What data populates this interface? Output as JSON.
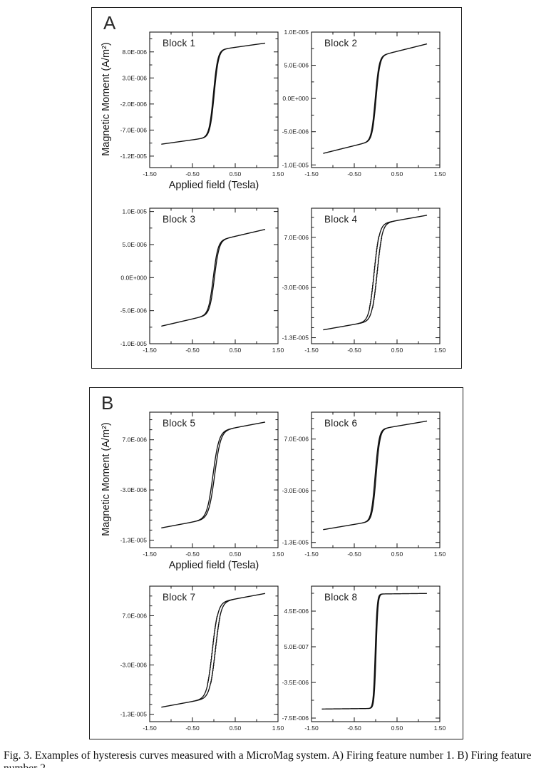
{
  "figure": {
    "caption": "Fig. 3. Examples of hysteresis curves measured with a MicroMag system. A) Firing feature number 1. B) Firing feature number 2.",
    "panels": [
      {
        "label": "A"
      },
      {
        "label": "B"
      }
    ]
  },
  "chart_data": [
    {
      "type": "line",
      "title": "Block 1",
      "panel": "A",
      "ylabel": "Magnetic Moment (A/m²)",
      "xlabel": "Applied field (Tesla)",
      "xlim": [
        -1.5,
        1.5
      ],
      "ylim": [
        -1.42e-05,
        1.18e-05
      ],
      "x_major": [
        -1.5,
        -0.5,
        0.5,
        1.5
      ],
      "x_labels": [
        "-1.50",
        "-0.50",
        "0.50",
        "1.50"
      ],
      "x_minor": [
        -1.0,
        0.0,
        1.0
      ],
      "yticks": [
        {
          "value": 8e-06,
          "label": "8.0E-006"
        },
        {
          "value": 3e-06,
          "label": "3.0E-006"
        },
        {
          "value": -2e-06,
          "label": "-2.0E-006"
        },
        {
          "value": -7e-06,
          "label": "-7.0E-006"
        },
        {
          "value": -1.2e-05,
          "label": "-1.2E-005"
        }
      ],
      "y_major_step": 5e-06,
      "y_minor_step": 2.5e-06,
      "curve": {
        "saturation": 8.3e-06,
        "width": 0.1,
        "coercivity": 0.01,
        "slope": 1.15e-06,
        "x_range": [
          -1.22,
          1.2
        ],
        "stepped": false
      }
    },
    {
      "type": "line",
      "title": "Block 2",
      "panel": "A",
      "xlim": [
        -1.5,
        1.5
      ],
      "ylim": [
        -1.04e-05,
        1e-05
      ],
      "x_major": [
        -1.5,
        -0.5,
        0.5,
        1.5
      ],
      "x_labels": [
        "-1.50",
        "-0.50",
        "0.50",
        "1.50"
      ],
      "x_minor": [
        -1.0,
        0.0,
        1.0
      ],
      "yticks": [
        {
          "value": 1e-05,
          "label": "1.0E-005"
        },
        {
          "value": 5e-06,
          "label": "5.0E-006"
        },
        {
          "value": 0.0,
          "label": "0.0E+000"
        },
        {
          "value": -5e-06,
          "label": "-5.0E-006"
        },
        {
          "value": -1e-05,
          "label": "-1.0E-005"
        }
      ],
      "y_major_step": 5e-06,
      "y_minor_step": 2.5e-06,
      "curve": {
        "saturation": 6.3e-06,
        "width": 0.09,
        "coercivity": 0.01,
        "slope": 1.6e-06,
        "x_range": [
          -1.22,
          1.2
        ],
        "stepped": false
      }
    },
    {
      "type": "line",
      "title": "Block 3",
      "panel": "A",
      "xlim": [
        -1.5,
        1.5
      ],
      "ylim": [
        -1e-05,
        1.05e-05
      ],
      "x_major": [
        -1.5,
        -0.5,
        0.5,
        1.5
      ],
      "x_labels": [
        "-1.50",
        "-0.50",
        "0.50",
        "1.50"
      ],
      "x_minor": [
        -1.0,
        0.0,
        1.0
      ],
      "yticks": [
        {
          "value": 1e-05,
          "label": "1.0E-005"
        },
        {
          "value": 5e-06,
          "label": "5.0E-006"
        },
        {
          "value": 0.0,
          "label": "0.0E+000"
        },
        {
          "value": -5e-06,
          "label": "-5.0E-006"
        },
        {
          "value": -1e-05,
          "label": "-1.0E-005"
        }
      ],
      "y_major_step": 5e-06,
      "y_minor_step": 2.5e-06,
      "curve": {
        "saturation": 5.5e-06,
        "width": 0.11,
        "coercivity": 0.014,
        "slope": 1.5e-06,
        "x_range": [
          -1.22,
          1.2
        ],
        "stepped": false
      }
    },
    {
      "type": "line",
      "title": "Block 4",
      "panel": "A",
      "xlim": [
        -1.5,
        1.5
      ],
      "ylim": [
        -1.42e-05,
        1.28e-05
      ],
      "x_major": [
        -1.5,
        -0.5,
        0.5,
        1.5
      ],
      "x_labels": [
        "-1.50",
        "-0.50",
        "0.50",
        "1.50"
      ],
      "x_minor": [
        -1.0,
        0.0,
        1.0
      ],
      "yticks": [
        {
          "value": 7e-06,
          "label": "7.0E-006"
        },
        {
          "value": -3e-06,
          "label": "-3.0E-006"
        },
        {
          "value": -1.3e-05,
          "label": "-1.3E-005"
        }
      ],
      "y_major_step": 1e-05,
      "y_minor_step": 2e-06,
      "curve": {
        "saturation": 9.6e-06,
        "width": 0.12,
        "coercivity": 0.032,
        "slope": 1.5e-06,
        "x_range": [
          -1.22,
          1.2
        ],
        "stepped": true
      }
    },
    {
      "type": "line",
      "title": "Block 5",
      "panel": "B",
      "ylabel": "Magnetic Moment (A/m²)",
      "xlabel": "Applied field (Tesla)",
      "xlim": [
        -1.5,
        1.5
      ],
      "ylim": [
        -1.45e-05,
        1.25e-05
      ],
      "x_major": [
        -1.5,
        -0.5,
        0.5,
        1.5
      ],
      "x_labels": [
        "-1.50",
        "-0.50",
        "0.50",
        "1.50"
      ],
      "x_minor": [
        -1.0,
        0.0,
        1.0
      ],
      "yticks": [
        {
          "value": 7e-06,
          "label": "7.0E-006"
        },
        {
          "value": -3e-06,
          "label": "-3.0E-006"
        },
        {
          "value": -1.3e-05,
          "label": "-1.3E-005"
        }
      ],
      "y_major_step": 1e-05,
      "y_minor_step": 2e-06,
      "curve": {
        "saturation": 8.6e-06,
        "width": 0.14,
        "coercivity": 0.02,
        "slope": 1.6e-06,
        "x_range": [
          -1.22,
          1.2
        ],
        "stepped": false
      }
    },
    {
      "type": "line",
      "title": "Block 6",
      "panel": "B",
      "xlim": [
        -1.5,
        1.5
      ],
      "ylim": [
        -1.4e-05,
        1.22e-05
      ],
      "x_major": [
        -1.5,
        -0.5,
        0.5,
        1.5
      ],
      "x_labels": [
        "-1.50",
        "-0.50",
        "0.50",
        "1.50"
      ],
      "x_minor": [
        -1.0,
        0.0,
        1.0
      ],
      "yticks": [
        {
          "value": 7e-06,
          "label": "7.0E-006"
        },
        {
          "value": -3e-06,
          "label": "-3.0E-006"
        },
        {
          "value": -1.3e-05,
          "label": "-1.3E-005"
        }
      ],
      "y_major_step": 1e-05,
      "y_minor_step": 2e-06,
      "curve": {
        "saturation": 8.8e-06,
        "width": 0.09,
        "coercivity": 0.012,
        "slope": 1.4e-06,
        "x_range": [
          -1.22,
          1.2
        ],
        "stepped": false
      }
    },
    {
      "type": "line",
      "title": "Block 7",
      "panel": "B",
      "xlim": [
        -1.5,
        1.5
      ],
      "ylim": [
        -1.45e-05,
        1.3e-05
      ],
      "x_major": [
        -1.5,
        -0.5,
        0.5,
        1.5
      ],
      "x_labels": [
        "-1.50",
        "-0.50",
        "0.50",
        "1.50"
      ],
      "x_minor": [
        -1.0,
        0.0,
        1.0
      ],
      "yticks": [
        {
          "value": 7e-06,
          "label": "7.0E-006"
        },
        {
          "value": -3e-06,
          "label": "-3.0E-006"
        },
        {
          "value": -1.3e-05,
          "label": "-1.3E-005"
        }
      ],
      "y_major_step": 1e-05,
      "y_minor_step": 2e-06,
      "curve": {
        "saturation": 9.6e-06,
        "width": 0.13,
        "coercivity": 0.032,
        "slope": 1.6e-06,
        "x_range": [
          -1.22,
          1.2
        ],
        "stepped": true
      }
    },
    {
      "type": "line",
      "title": "Block 8",
      "panel": "B",
      "xlim": [
        -1.5,
        1.5
      ],
      "ylim": [
        -7.9e-06,
        7.3e-06
      ],
      "x_major": [
        -1.5,
        -0.5,
        0.5,
        1.5
      ],
      "x_labels": [
        "-1.50",
        "-0.50",
        "0.50",
        "1.50"
      ],
      "x_minor": [
        -1.0,
        0.0,
        1.0
      ],
      "yticks": [
        {
          "value": 4.5e-06,
          "label": "4.5E-006"
        },
        {
          "value": 5e-07,
          "label": "5.0E-007"
        },
        {
          "value": -3.5e-06,
          "label": "-3.5E-006"
        },
        {
          "value": -7.5e-06,
          "label": "-7.5E-006"
        }
      ],
      "y_major_step": 4e-06,
      "y_minor_step": 2e-06,
      "curve": {
        "saturation": 6.42e-06,
        "width": 0.045,
        "coercivity": 0.01,
        "slope": 5e-08,
        "x_range": [
          -1.25,
          1.2
        ],
        "stepped": false
      }
    }
  ]
}
